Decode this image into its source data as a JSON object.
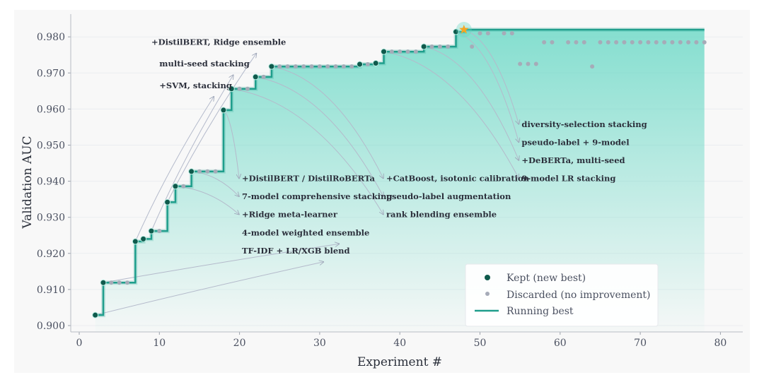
{
  "chart_data": {
    "type": "scatter",
    "title": "",
    "xlabel": "Experiment #",
    "ylabel": "Validation AUC",
    "xlim": [
      -1,
      82
    ],
    "ylim": [
      0.899,
      0.984
    ],
    "xticks": [
      0,
      10,
      20,
      30,
      40,
      50,
      60,
      70,
      80
    ],
    "yticks": [
      0.9,
      0.91,
      0.92,
      0.93,
      0.94,
      0.95,
      0.96,
      0.97,
      0.98
    ],
    "grid": true,
    "legend_position": "bottom-right",
    "legend": [
      "Kept (new best)",
      "Discarded (no improvement)",
      "Running best"
    ],
    "colors": {
      "kept": "#0f5a4c",
      "discarded": "#a6abb8",
      "running": "#1f9e8c",
      "fill": "#5fd6c2",
      "star": "#f5a623"
    },
    "kept": [
      {
        "x": 2,
        "y": 0.9029
      },
      {
        "x": 3,
        "y": 0.9119
      },
      {
        "x": 7,
        "y": 0.9233
      },
      {
        "x": 8,
        "y": 0.924
      },
      {
        "x": 9,
        "y": 0.9262
      },
      {
        "x": 11,
        "y": 0.9342
      },
      {
        "x": 12,
        "y": 0.9386
      },
      {
        "x": 14,
        "y": 0.9427
      },
      {
        "x": 18,
        "y": 0.9597
      },
      {
        "x": 19,
        "y": 0.9656
      },
      {
        "x": 22,
        "y": 0.9689
      },
      {
        "x": 24,
        "y": 0.9718
      },
      {
        "x": 35,
        "y": 0.9724
      },
      {
        "x": 37,
        "y": 0.9727
      },
      {
        "x": 38,
        "y": 0.9759
      },
      {
        "x": 43,
        "y": 0.9773
      },
      {
        "x": 47,
        "y": 0.9814
      }
    ],
    "best": {
      "x": 48,
      "y": 0.982
    },
    "discarded": [
      {
        "x": 4,
        "y": 0.9119
      },
      {
        "x": 5,
        "y": 0.9119
      },
      {
        "x": 6,
        "y": 0.9119
      },
      {
        "x": 10,
        "y": 0.9262
      },
      {
        "x": 13,
        "y": 0.9386
      },
      {
        "x": 15,
        "y": 0.9427
      },
      {
        "x": 16,
        "y": 0.9427
      },
      {
        "x": 17,
        "y": 0.9427
      },
      {
        "x": 20,
        "y": 0.9656
      },
      {
        "x": 21,
        "y": 0.9656
      },
      {
        "x": 23,
        "y": 0.9689
      },
      {
        "x": 25,
        "y": 0.9718
      },
      {
        "x": 26,
        "y": 0.9718
      },
      {
        "x": 27,
        "y": 0.9718
      },
      {
        "x": 28,
        "y": 0.9718
      },
      {
        "x": 29,
        "y": 0.9718
      },
      {
        "x": 30,
        "y": 0.9718
      },
      {
        "x": 31,
        "y": 0.9718
      },
      {
        "x": 32,
        "y": 0.9718
      },
      {
        "x": 33,
        "y": 0.9718
      },
      {
        "x": 34,
        "y": 0.9718
      },
      {
        "x": 36,
        "y": 0.9724
      },
      {
        "x": 39,
        "y": 0.9759
      },
      {
        "x": 40,
        "y": 0.9759
      },
      {
        "x": 41,
        "y": 0.9759
      },
      {
        "x": 42,
        "y": 0.9759
      },
      {
        "x": 44,
        "y": 0.9773
      },
      {
        "x": 45,
        "y": 0.9773
      },
      {
        "x": 46,
        "y": 0.9773
      },
      {
        "x": 49,
        "y": 0.9773
      },
      {
        "x": 50,
        "y": 0.981
      },
      {
        "x": 51,
        "y": 0.981
      },
      {
        "x": 53,
        "y": 0.981
      },
      {
        "x": 54,
        "y": 0.981
      },
      {
        "x": 55,
        "y": 0.9725
      },
      {
        "x": 56,
        "y": 0.9725
      },
      {
        "x": 57,
        "y": 0.9725
      },
      {
        "x": 58,
        "y": 0.9785
      },
      {
        "x": 59,
        "y": 0.9785
      },
      {
        "x": 61,
        "y": 0.9785
      },
      {
        "x": 62,
        "y": 0.9785
      },
      {
        "x": 63,
        "y": 0.9785
      },
      {
        "x": 64,
        "y": 0.9718
      },
      {
        "x": 65,
        "y": 0.9785
      },
      {
        "x": 66,
        "y": 0.9785
      },
      {
        "x": 67,
        "y": 0.9785
      },
      {
        "x": 68,
        "y": 0.9785
      },
      {
        "x": 69,
        "y": 0.9785
      },
      {
        "x": 70,
        "y": 0.9785
      },
      {
        "x": 71,
        "y": 0.9785
      },
      {
        "x": 72,
        "y": 0.9785
      },
      {
        "x": 73,
        "y": 0.9785
      },
      {
        "x": 74,
        "y": 0.9785
      },
      {
        "x": 75,
        "y": 0.9785
      },
      {
        "x": 76,
        "y": 0.9785
      },
      {
        "x": 77,
        "y": 0.9785
      },
      {
        "x": 78,
        "y": 0.9785
      }
    ],
    "running_best_end_x": 78,
    "annotations": [
      {
        "text": "+DistilBERT, Ridge ensemble",
        "from_x": 11,
        "tx": 9,
        "ty": 0.9778
      },
      {
        "text": "multi-seed stacking",
        "from_x": 9,
        "tx": 10,
        "ty": 0.9718
      },
      {
        "text": "+SVM, stacking",
        "from_x": 7,
        "tx": 10,
        "ty": 0.9658
      },
      {
        "text": "+DistilBERT / DistilRoBERTa",
        "from_x": 18,
        "tx": 20.3,
        "ty": 0.94
      },
      {
        "text": "7-model comprehensive stacking",
        "from_x": 14,
        "tx": 20.3,
        "ty": 0.935
      },
      {
        "text": "+Ridge meta-learner",
        "from_x": 12,
        "tx": 20.3,
        "ty": 0.93
      },
      {
        "text": "4-model weighted ensemble",
        "from_x": 3,
        "tx": 20.3,
        "ty": 0.925
      },
      {
        "text": "TF-IDF + LR/XGB blend",
        "from_x": 2,
        "tx": 20.3,
        "ty": 0.92
      },
      {
        "text": "+CatBoost, isotonic calibration",
        "from_x": 24,
        "tx": 38.3,
        "ty": 0.94
      },
      {
        "text": "pseudo-label augmentation",
        "from_x": 22,
        "tx": 38.3,
        "ty": 0.935
      },
      {
        "text": "rank blending ensemble",
        "from_x": 19,
        "tx": 38.3,
        "ty": 0.93
      },
      {
        "text": "diversity-selection stacking",
        "from_x": 48,
        "tx": 55.2,
        "ty": 0.955
      },
      {
        "text": "pseudo-label + 9-model",
        "from_x": 47,
        "tx": 55.2,
        "ty": 0.95
      },
      {
        "text": "+DeBERTa, multi-seed",
        "from_x": 43,
        "tx": 55.2,
        "ty": 0.945
      },
      {
        "text": "9-model LR stacking",
        "from_x": 38,
        "tx": 55.2,
        "ty": 0.94
      }
    ]
  }
}
